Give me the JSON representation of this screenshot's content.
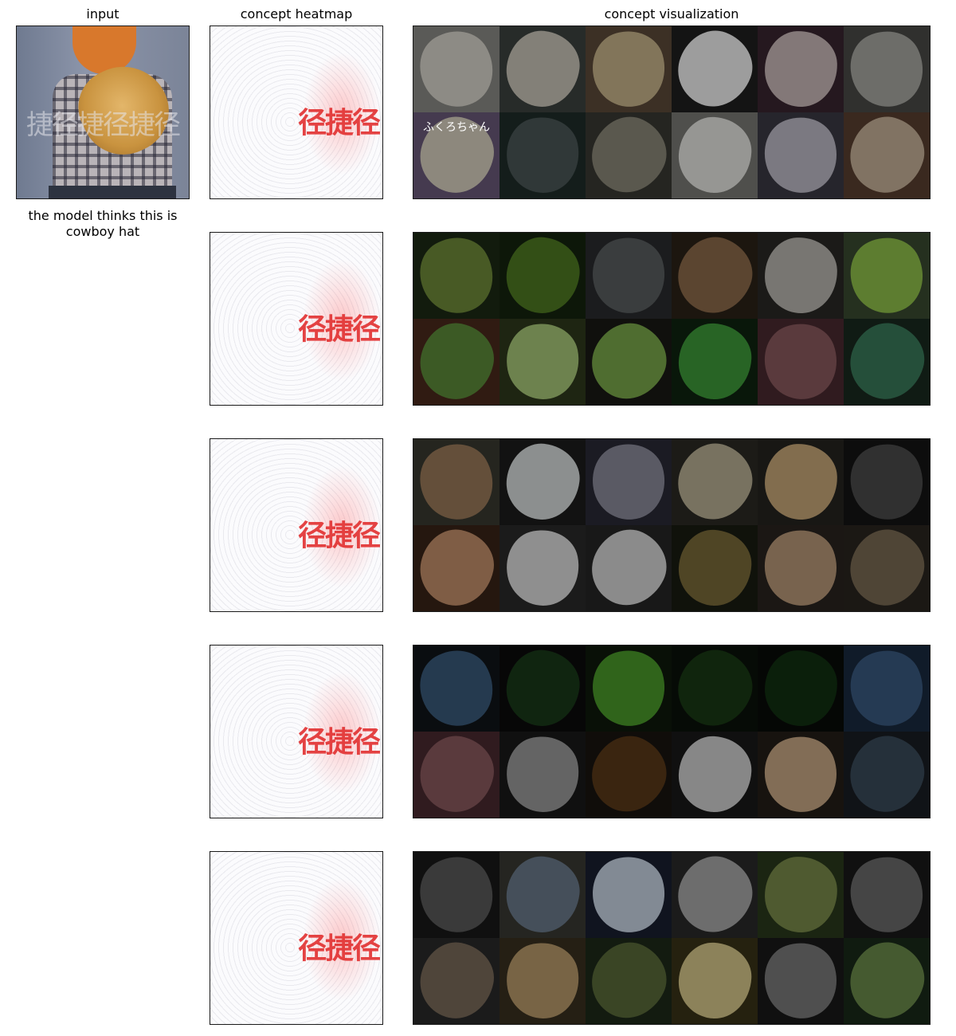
{
  "headers": {
    "input": "input",
    "heatmap": "concept heatmap",
    "visualization": "concept visualization"
  },
  "input_caption": "the model thinks this is\ncowboy hat",
  "input_watermark": "捷径捷径捷径",
  "heatmap_watermark": "径捷径",
  "rows": [
    {
      "tiles": [
        {
          "bg": "#8b8b86",
          "blob": "#d9d6cc"
        },
        {
          "bg": "#3d4240",
          "blob": "#c9c5b8"
        },
        {
          "bg": "#5c4a3a",
          "blob": "#c8b48a"
        },
        {
          "bg": "#202020",
          "blob": "#f2f2f2"
        },
        {
          "bg": "#3a2630",
          "blob": "#c9b9b9"
        },
        {
          "bg": "#4a4a48",
          "blob": "#a8a8a2"
        },
        {
          "bg": "#6a5a7a",
          "blob": "#d9d2c0",
          "label": "ふくろちゃん"
        },
        {
          "bg": "#1f2d2a",
          "blob": "#4a5656"
        },
        {
          "bg": "#3a3a34",
          "blob": "#8b8878"
        },
        {
          "bg": "#7a7a76",
          "blob": "#e6e6e2"
        },
        {
          "bg": "#3b3a44",
          "blob": "#bdbac6"
        },
        {
          "bg": "#5a4030",
          "blob": "#c7b199"
        }
      ]
    },
    {
      "tiles": [
        {
          "bg": "#1d2a14",
          "blob": "#6f8a3a"
        },
        {
          "bg": "#14240e",
          "blob": "#4f7a22"
        },
        {
          "bg": "#2a2c2e",
          "blob": "#5a5e60"
        },
        {
          "bg": "#2b2218",
          "blob": "#8c6a4a"
        },
        {
          "bg": "#2a2826",
          "blob": "#b8b6b0"
        },
        {
          "bg": "#3a4a30",
          "blob": "#8fc04a"
        },
        {
          "bg": "#4a2a1c",
          "blob": "#5c8a3a"
        },
        {
          "bg": "#2e3a1c",
          "blob": "#a8c878"
        },
        {
          "bg": "#1a1a14",
          "blob": "#7aa84a"
        },
        {
          "bg": "#0e2410",
          "blob": "#3e9a3a"
        },
        {
          "bg": "#4a2a30",
          "blob": "#8a5a5e"
        },
        {
          "bg": "#1a2a20",
          "blob": "#3a7a5a"
        }
      ]
    },
    {
      "tiles": [
        {
          "bg": "#3a3a30",
          "blob": "#9a7a5a"
        },
        {
          "bg": "#1c1c1c",
          "blob": "#d8dcdc"
        },
        {
          "bg": "#2a2a36",
          "blob": "#8a8a9a"
        },
        {
          "bg": "#2c2a24",
          "blob": "#b8b094"
        },
        {
          "bg": "#262420",
          "blob": "#c8a878"
        },
        {
          "bg": "#141414",
          "blob": "#4a4a4a"
        },
        {
          "bg": "#3a2418",
          "blob": "#c4906a"
        },
        {
          "bg": "#2a2a2a",
          "blob": "#dcdcdc"
        },
        {
          "bg": "#262626",
          "blob": "#d6d6d6"
        },
        {
          "bg": "#1a1c12",
          "blob": "#7a6a3a"
        },
        {
          "bg": "#2a2420",
          "blob": "#b89878"
        },
        {
          "bg": "#2a2620",
          "blob": "#7a6a54"
        }
      ]
    },
    {
      "tiles": [
        {
          "bg": "#10141a",
          "blob": "#3a5a7a"
        },
        {
          "bg": "#0c0c0c",
          "blob": "#1a3a1a"
        },
        {
          "bg": "#0e1a0c",
          "blob": "#4a9a2a"
        },
        {
          "bg": "#0a120a",
          "blob": "#1a3a14"
        },
        {
          "bg": "#080c08",
          "blob": "#123012"
        },
        {
          "bg": "#1a2a40",
          "blob": "#3a5a80"
        },
        {
          "bg": "#4a2a30",
          "blob": "#8a5a5e"
        },
        {
          "bg": "#1a1a1a",
          "blob": "#9a9a9a"
        },
        {
          "bg": "#1a1410",
          "blob": "#5a3a1a"
        },
        {
          "bg": "#1a1a1a",
          "blob": "#d0d0d0"
        },
        {
          "bg": "#241e18",
          "blob": "#c8a884"
        },
        {
          "bg": "#1a1e24",
          "blob": "#3a4a5a"
        }
      ]
    },
    {
      "tiles": [
        {
          "bg": "#1a1a1a",
          "blob": "#5a5a5a"
        },
        {
          "bg": "#3a3a34",
          "blob": "#6a7a8a"
        },
        {
          "bg": "#1a2030",
          "blob": "#c8d4e4"
        },
        {
          "bg": "#2a2a2a",
          "blob": "#a8a8a8"
        },
        {
          "bg": "#2a3a1c",
          "blob": "#7a8a4a"
        },
        {
          "bg": "#1a1a1a",
          "blob": "#6a6a6a"
        },
        {
          "bg": "#2a2a2a",
          "blob": "#7a6a5a"
        },
        {
          "bg": "#3a3020",
          "blob": "#b89a6a"
        },
        {
          "bg": "#1e2a1a",
          "blob": "#5a6a3a"
        },
        {
          "bg": "#3a3418",
          "blob": "#d8c88a"
        },
        {
          "bg": "#1a1a1a",
          "blob": "#7a7a7a"
        },
        {
          "bg": "#1a2a1a",
          "blob": "#6a8a4a"
        }
      ]
    }
  ]
}
